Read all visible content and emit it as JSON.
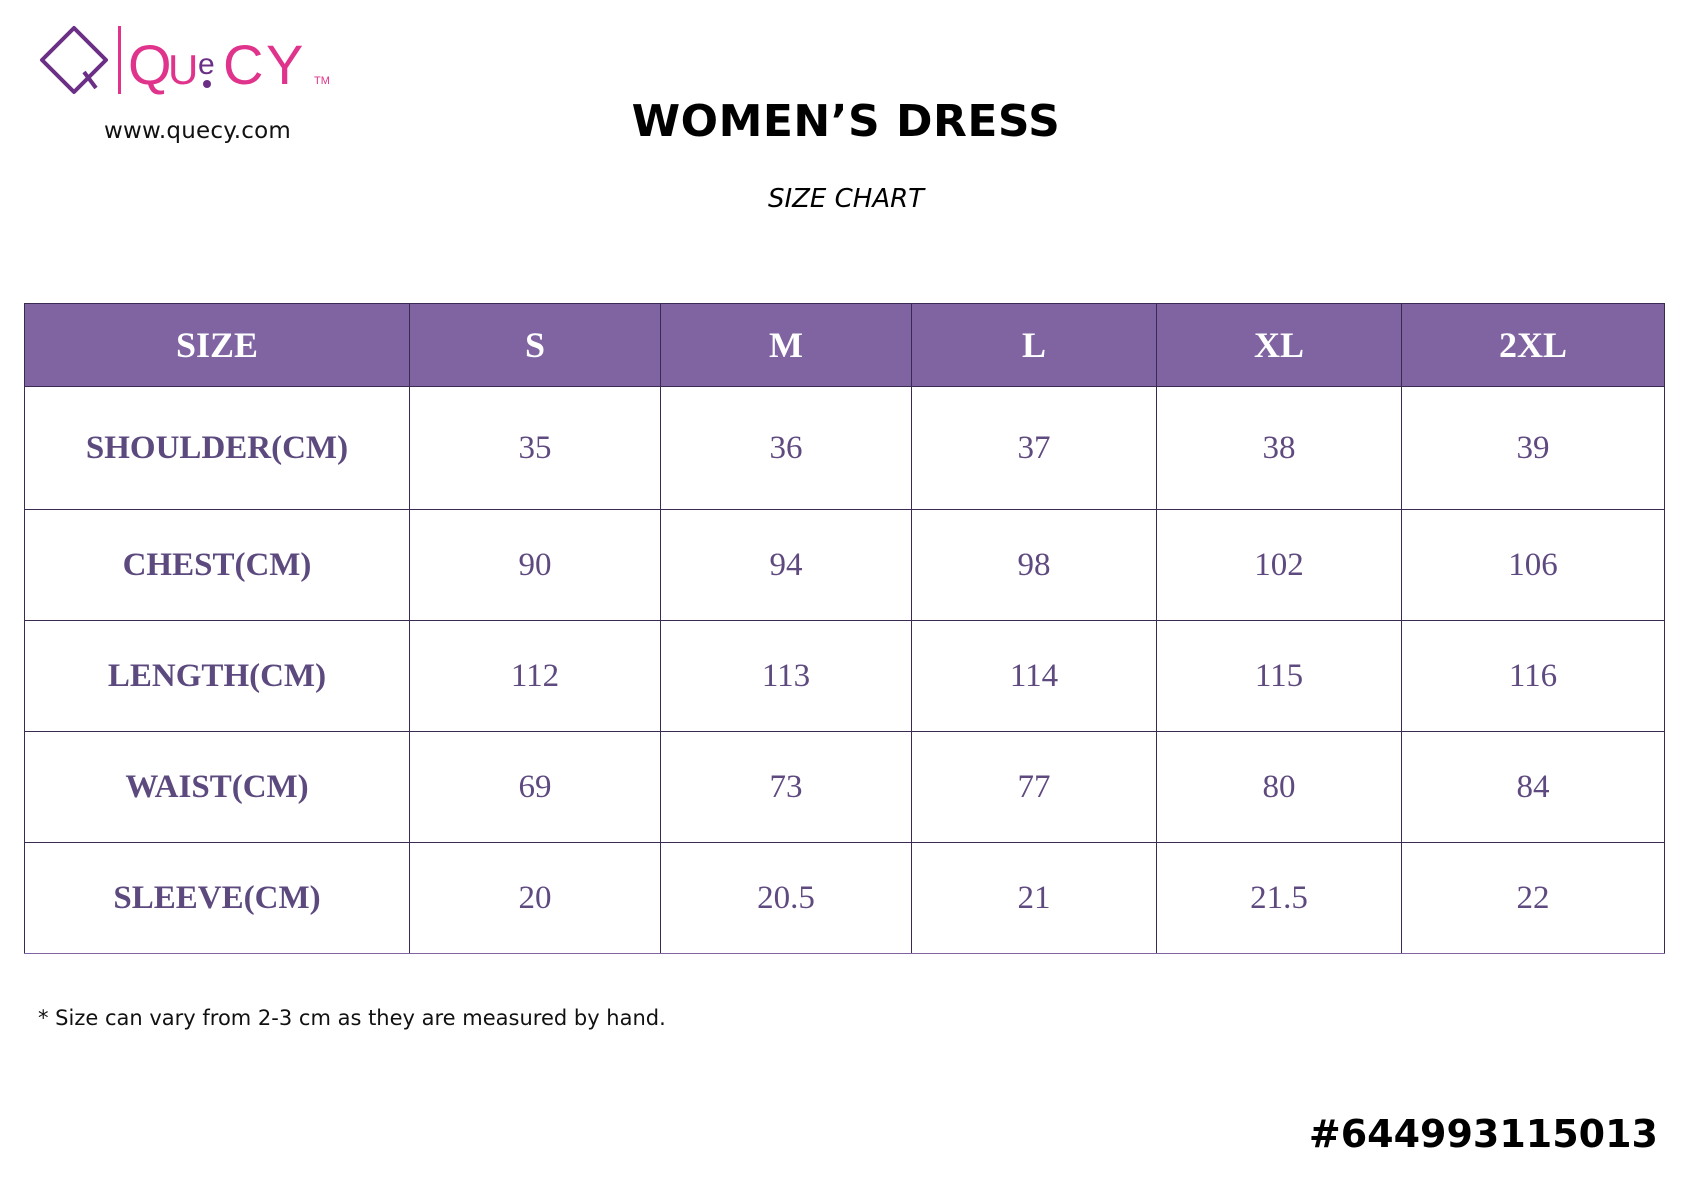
{
  "header": {
    "logo_text": "QUeCY",
    "logo_trademark": "TM",
    "website": "www.quecy.com",
    "title": "WOMEN’S DRESS",
    "subtitle": "SIZE CHART"
  },
  "colors": {
    "header_bg": "#8064a2",
    "logo_purple": "#6b2f86",
    "logo_pink": "#e0338c",
    "cell_text": "#5f4a80"
  },
  "table": {
    "columns": [
      "SIZE",
      "S",
      "M",
      "L",
      "XL",
      "2XL"
    ],
    "rows": [
      {
        "label": "SHOULDER(CM)",
        "values": [
          "35",
          "36",
          "37",
          "38",
          "39"
        ]
      },
      {
        "label": "CHEST(CM)",
        "values": [
          "90",
          "94",
          "98",
          "102",
          "106"
        ]
      },
      {
        "label": "LENGTH(CM)",
        "values": [
          "112",
          "113",
          "114",
          "115",
          "116"
        ]
      },
      {
        "label": "WAIST(CM)",
        "values": [
          "69",
          "73",
          "77",
          "80",
          "84"
        ]
      },
      {
        "label": "SLEEVE(CM)",
        "values": [
          "20",
          "20.5",
          "21",
          "21.5",
          "22"
        ]
      }
    ]
  },
  "footer": {
    "note": "* Size can vary from 2-3 cm as they are measured by hand.",
    "code": "#644993115013"
  }
}
